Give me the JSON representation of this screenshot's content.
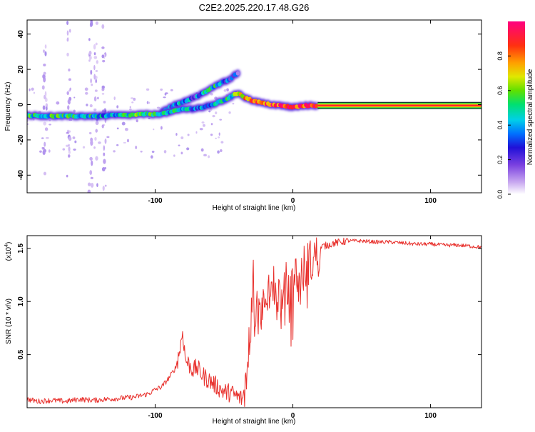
{
  "title": "C2E2.2025.220.17.48.G26",
  "colors": {
    "axis": "#000000",
    "snr_line": "#e8302c",
    "colormap": [
      "#ffffff",
      "#c8a8f0",
      "#8a4ae0",
      "#3010d8",
      "#0060ff",
      "#00c8e8",
      "#00e070",
      "#90e000",
      "#f0e000",
      "#ff8000",
      "#ff2020",
      "#ff0080"
    ]
  },
  "chart_data": [
    {
      "type": "heatmap",
      "xlabel": "Height of straight line (km)",
      "ylabel": "Frequency (Hz)",
      "xlim": [
        -193,
        137
      ],
      "ylim": [
        -50,
        48
      ],
      "xticks": [
        -100,
        0,
        100
      ],
      "xtick_labels": [
        "-100",
        "0",
        "100"
      ],
      "yticks": [
        -40,
        -20,
        0,
        20,
        40
      ],
      "ytick_labels": [
        "-40",
        "-20",
        "0",
        "20",
        "40"
      ],
      "colorbar": {
        "label": "Normalized spectral amplitude",
        "range": [
          0,
          1
        ],
        "ticks": [
          0.0,
          0.2,
          0.4,
          0.6,
          0.8
        ],
        "tick_labels": [
          "0.0",
          "0.2",
          "0.4",
          "0.6",
          "0.8"
        ]
      },
      "main_track": {
        "x": [
          -193,
          -180,
          -170,
          -160,
          -150,
          -140,
          -130,
          -120,
          -110,
          -100,
          -95,
          -90,
          -85,
          -80,
          -75,
          -70,
          -65,
          -60,
          -55,
          -50,
          -45,
          -40,
          -38,
          -35,
          -30,
          -25,
          -20,
          -15,
          -10,
          -5,
          0,
          5,
          10,
          15,
          20,
          40,
          60,
          80,
          100,
          120,
          137
        ],
        "y": [
          -6,
          -6.5,
          -6.5,
          -6.5,
          -6.5,
          -6.5,
          -6,
          -6,
          -5.5,
          -5.5,
          -5,
          -4.5,
          -3.5,
          -2.5,
          -2.5,
          -2,
          -1.5,
          -0.5,
          1,
          2.5,
          4.5,
          6.5,
          6,
          4,
          2.5,
          1.5,
          0.5,
          0,
          -0.5,
          -1,
          -1.5,
          -1,
          -0.5,
          -0.5,
          -0.5,
          -0.5,
          -0.5,
          -0.5,
          -0.5,
          -0.5,
          -0.5
        ],
        "amplitude": [
          0.5,
          0.45,
          0.5,
          0.45,
          0.45,
          0.4,
          0.45,
          0.5,
          0.55,
          0.5,
          0.45,
          0.45,
          0.45,
          0.4,
          0.4,
          0.35,
          0.35,
          0.4,
          0.45,
          0.45,
          0.5,
          0.6,
          0.7,
          0.75,
          0.8,
          0.85,
          0.85,
          0.85,
          0.85,
          0.9,
          0.9,
          0.85,
          0.9,
          0.9,
          0.95,
          0.9,
          0.9,
          0.9,
          0.9,
          0.9,
          0.9
        ]
      },
      "secondary_track": {
        "x": [
          -95,
          -90,
          -85,
          -80,
          -75,
          -70,
          -65,
          -60,
          -55,
          -50,
          -45,
          -40
        ],
        "y": [
          -3.5,
          -2,
          0,
          1.5,
          3,
          4.5,
          6.5,
          9,
          11,
          13,
          15,
          18
        ],
        "amplitude": [
          0.3,
          0.35,
          0.4,
          0.4,
          0.35,
          0.3,
          0.4,
          0.5,
          0.45,
          0.35,
          0.3,
          0.25
        ]
      },
      "noise_columns_x": [
        -180,
        -163,
        -147,
        -143,
        -137
      ]
    },
    {
      "type": "line",
      "xlabel": "Height of straight line (km)",
      "ylabel": "SNR (10 * v/v)",
      "scale_label": "(x10",
      "scale_exponent": "4",
      "scale_suffix": ")",
      "xlim": [
        -193,
        137
      ],
      "ylim": [
        0,
        1.62
      ],
      "xticks": [
        -100,
        0,
        100
      ],
      "xtick_labels": [
        "-100",
        "0",
        "100"
      ],
      "yticks": [
        0.5,
        1.0,
        1.5
      ],
      "ytick_labels": [
        "0.5",
        "1.0",
        "1.5"
      ],
      "series": [
        {
          "x": [
            -193,
            -185,
            -175,
            -165,
            -155,
            -145,
            -135,
            -125,
            -115,
            -105,
            -100,
            -95,
            -90,
            -85,
            -82,
            -80,
            -78,
            -75,
            -72,
            -70,
            -65,
            -60,
            -55,
            -50,
            -45,
            -40,
            -36,
            -34,
            -32,
            -30,
            -29,
            -28,
            -26,
            -24,
            -22,
            -20,
            -18,
            -15,
            -12,
            -10,
            -8,
            -5,
            -2,
            0,
            2,
            5,
            8,
            10,
            12,
            15,
            18,
            20,
            22,
            25,
            30,
            35,
            40,
            50,
            60,
            70,
            80,
            90,
            100,
            110,
            120,
            130,
            137
          ],
          "y": [
            0.08,
            0.06,
            0.07,
            0.06,
            0.08,
            0.07,
            0.08,
            0.09,
            0.1,
            0.13,
            0.17,
            0.2,
            0.28,
            0.38,
            0.55,
            0.72,
            0.45,
            0.4,
            0.35,
            0.38,
            0.3,
            0.25,
            0.2,
            0.15,
            0.14,
            0.1,
            0.08,
            0.22,
            0.55,
            0.9,
            1.42,
            0.6,
            0.95,
            0.8,
            1.05,
            0.75,
            1.1,
            1.2,
            1.0,
            1.1,
            0.9,
            1.15,
            1.0,
            1.2,
            1.25,
            1.15,
            1.3,
            1.45,
            1.35,
            1.4,
            1.48,
            1.5,
            1.52,
            1.53,
            1.55,
            1.56,
            1.57,
            1.57,
            1.56,
            1.56,
            1.55,
            1.54,
            1.54,
            1.53,
            1.53,
            1.52,
            1.51
          ]
        }
      ]
    }
  ]
}
